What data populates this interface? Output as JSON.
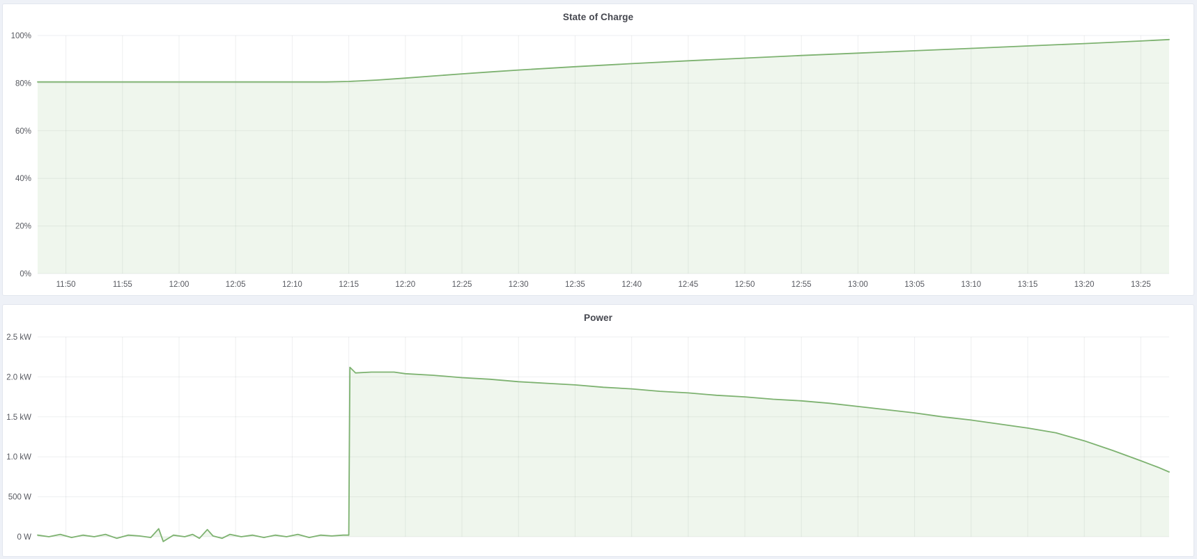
{
  "dashboard": {
    "panels": [
      "State of Charge",
      "Power"
    ]
  },
  "colors": {
    "line_green": "#7db270",
    "fill_green": "rgba(126,181,110,0.12)",
    "grid": "rgba(40,46,60,0.08)",
    "tick_text": "#56585f",
    "title_text": "#45474f",
    "panel_bg": "#ffffff",
    "page_bg": "#eef1f7",
    "panel_border": "#e2e6ee"
  },
  "chart_data": [
    {
      "type": "area",
      "title": "State of Charge",
      "xlabel": "",
      "ylabel": "",
      "unit": "%",
      "x_value_unit": "minutes_since_midnight",
      "xlim": [
        707.5,
        807.5
      ],
      "ylim": [
        0,
        100
      ],
      "grid": true,
      "legend": "none",
      "x_labels_visible": true,
      "line_color": "#7db270",
      "fill_color": "rgba(126,181,110,0.12)",
      "y_ticks": [
        {
          "value": 0,
          "label": "0%"
        },
        {
          "value": 20,
          "label": "20%"
        },
        {
          "value": 40,
          "label": "40%"
        },
        {
          "value": 60,
          "label": "60%"
        },
        {
          "value": 80,
          "label": "80%"
        },
        {
          "value": 100,
          "label": "100%"
        }
      ],
      "x_ticks": [
        {
          "value": 710,
          "label": "11:50"
        },
        {
          "value": 715,
          "label": "11:55"
        },
        {
          "value": 720,
          "label": "12:00"
        },
        {
          "value": 725,
          "label": "12:05"
        },
        {
          "value": 730,
          "label": "12:10"
        },
        {
          "value": 735,
          "label": "12:15"
        },
        {
          "value": 740,
          "label": "12:20"
        },
        {
          "value": 745,
          "label": "12:25"
        },
        {
          "value": 750,
          "label": "12:30"
        },
        {
          "value": 755,
          "label": "12:35"
        },
        {
          "value": 760,
          "label": "12:40"
        },
        {
          "value": 765,
          "label": "12:45"
        },
        {
          "value": 770,
          "label": "12:50"
        },
        {
          "value": 775,
          "label": "12:55"
        },
        {
          "value": 780,
          "label": "13:00"
        },
        {
          "value": 785,
          "label": "13:05"
        },
        {
          "value": 790,
          "label": "13:10"
        },
        {
          "value": 795,
          "label": "13:15"
        },
        {
          "value": 800,
          "label": "13:20"
        },
        {
          "value": 805,
          "label": "13:25"
        }
      ],
      "points": [
        [
          707.5,
          80.5
        ],
        [
          715,
          80.5
        ],
        [
          722,
          80.5
        ],
        [
          728,
          80.5
        ],
        [
          733,
          80.5
        ],
        [
          735,
          80.7
        ],
        [
          737.5,
          81.3
        ],
        [
          740,
          82.1
        ],
        [
          742.5,
          83.0
        ],
        [
          745,
          83.9
        ],
        [
          747.5,
          84.7
        ],
        [
          750,
          85.5
        ],
        [
          755,
          86.9
        ],
        [
          760,
          88.2
        ],
        [
          765,
          89.4
        ],
        [
          770,
          90.5
        ],
        [
          775,
          91.6
        ],
        [
          780,
          92.6
        ],
        [
          785,
          93.6
        ],
        [
          790,
          94.6
        ],
        [
          795,
          95.6
        ],
        [
          800,
          96.6
        ],
        [
          805,
          97.7
        ],
        [
          807.5,
          98.3
        ]
      ]
    },
    {
      "type": "area",
      "title": "Power",
      "xlabel": "",
      "ylabel": "",
      "unit": "kW",
      "x_value_unit": "minutes_since_midnight",
      "xlim": [
        707.5,
        807.5
      ],
      "ylim": [
        0,
        2.5
      ],
      "grid": true,
      "legend": "none",
      "x_labels_visible": false,
      "line_color": "#7db270",
      "fill_color": "rgba(126,181,110,0.12)",
      "y_ticks": [
        {
          "value": 0,
          "label": "0 W"
        },
        {
          "value": 0.5,
          "label": "500 W"
        },
        {
          "value": 1.0,
          "label": "1.0 kW"
        },
        {
          "value": 1.5,
          "label": "1.5 kW"
        },
        {
          "value": 2.0,
          "label": "2.0 kW"
        },
        {
          "value": 2.5,
          "label": "2.5 kW"
        }
      ],
      "x_ticks": [
        {
          "value": 710,
          "label": "11:50"
        },
        {
          "value": 715,
          "label": "11:55"
        },
        {
          "value": 720,
          "label": "12:00"
        },
        {
          "value": 725,
          "label": "12:05"
        },
        {
          "value": 730,
          "label": "12:10"
        },
        {
          "value": 735,
          "label": "12:15"
        },
        {
          "value": 740,
          "label": "12:20"
        },
        {
          "value": 745,
          "label": "12:25"
        },
        {
          "value": 750,
          "label": "12:30"
        },
        {
          "value": 755,
          "label": "12:35"
        },
        {
          "value": 760,
          "label": "12:40"
        },
        {
          "value": 765,
          "label": "12:45"
        },
        {
          "value": 770,
          "label": "12:50"
        },
        {
          "value": 775,
          "label": "12:55"
        },
        {
          "value": 780,
          "label": "13:00"
        },
        {
          "value": 785,
          "label": "13:05"
        },
        {
          "value": 790,
          "label": "13:10"
        },
        {
          "value": 795,
          "label": "13:15"
        },
        {
          "value": 800,
          "label": "13:20"
        },
        {
          "value": 805,
          "label": "13:25"
        }
      ],
      "points": [
        [
          707.5,
          0.02
        ],
        [
          708.5,
          0.0
        ],
        [
          709.5,
          0.03
        ],
        [
          710.5,
          -0.01
        ],
        [
          711.5,
          0.02
        ],
        [
          712.5,
          0.0
        ],
        [
          713.5,
          0.03
        ],
        [
          714.5,
          -0.02
        ],
        [
          715.5,
          0.02
        ],
        [
          716.5,
          0.01
        ],
        [
          717.5,
          -0.01
        ],
        [
          718.2,
          0.1
        ],
        [
          718.6,
          -0.06
        ],
        [
          719.5,
          0.02
        ],
        [
          720.5,
          0.0
        ],
        [
          721.2,
          0.03
        ],
        [
          721.8,
          -0.02
        ],
        [
          722.5,
          0.09
        ],
        [
          723.0,
          0.01
        ],
        [
          723.8,
          -0.02
        ],
        [
          724.5,
          0.03
        ],
        [
          725.5,
          0.0
        ],
        [
          726.5,
          0.02
        ],
        [
          727.5,
          -0.01
        ],
        [
          728.5,
          0.02
        ],
        [
          729.5,
          0.0
        ],
        [
          730.5,
          0.03
        ],
        [
          731.5,
          -0.01
        ],
        [
          732.5,
          0.02
        ],
        [
          733.5,
          0.01
        ],
        [
          734.5,
          0.02
        ],
        [
          735.0,
          0.02
        ],
        [
          735.1,
          2.12
        ],
        [
          735.6,
          2.05
        ],
        [
          737,
          2.06
        ],
        [
          739,
          2.06
        ],
        [
          740,
          2.04
        ],
        [
          742.5,
          2.02
        ],
        [
          745,
          1.99
        ],
        [
          747.5,
          1.97
        ],
        [
          750,
          1.94
        ],
        [
          752.5,
          1.92
        ],
        [
          755,
          1.9
        ],
        [
          757.5,
          1.87
        ],
        [
          760,
          1.85
        ],
        [
          762.5,
          1.82
        ],
        [
          765,
          1.8
        ],
        [
          767.5,
          1.77
        ],
        [
          770,
          1.75
        ],
        [
          772.5,
          1.72
        ],
        [
          775,
          1.7
        ],
        [
          777.5,
          1.67
        ],
        [
          780,
          1.63
        ],
        [
          782.5,
          1.59
        ],
        [
          785,
          1.55
        ],
        [
          787.5,
          1.5
        ],
        [
          790,
          1.46
        ],
        [
          792.5,
          1.41
        ],
        [
          795,
          1.36
        ],
        [
          797.5,
          1.3
        ],
        [
          800,
          1.2
        ],
        [
          802.5,
          1.08
        ],
        [
          805,
          0.95
        ],
        [
          806.5,
          0.87
        ],
        [
          807.5,
          0.81
        ]
      ]
    }
  ]
}
